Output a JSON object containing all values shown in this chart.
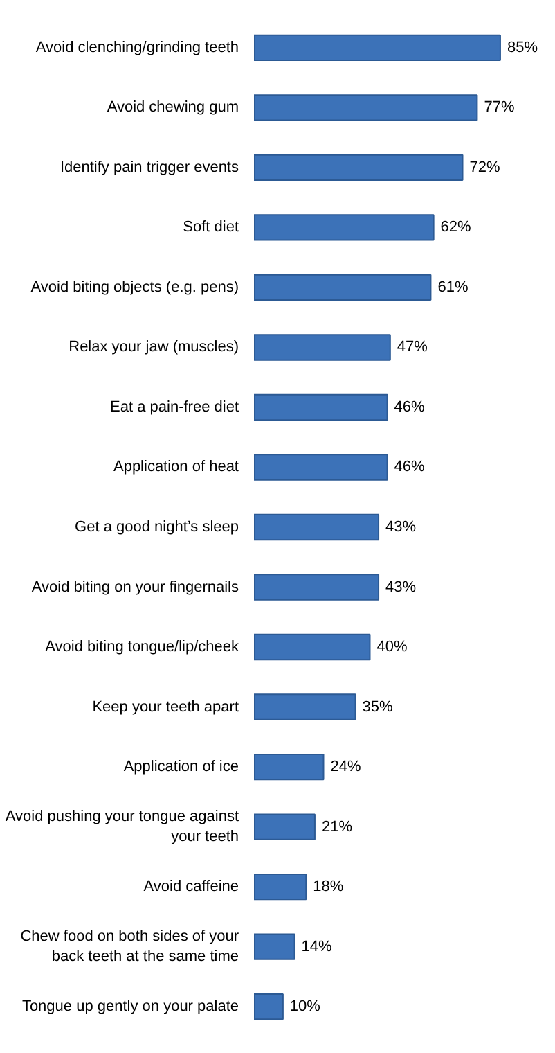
{
  "chart_data": {
    "type": "bar",
    "orientation": "horizontal",
    "categories": [
      "Avoid clenching/grinding teeth",
      "Avoid chewing gum",
      "Identify pain trigger events",
      "Soft diet",
      "Avoid biting objects (e.g. pens)",
      "Relax your jaw (muscles)",
      "Eat a pain-free diet",
      "Application of heat",
      "Get a good night’s sleep",
      "Avoid biting on your fingernails",
      "Avoid biting tongue/lip/cheek",
      "Keep your teeth apart",
      "Application of ice",
      "Avoid pushing your tongue against your teeth",
      "Avoid caffeine",
      "Chew food on both sides of your back teeth at the same time",
      "Tongue up gently on your palate"
    ],
    "values": [
      85,
      77,
      72,
      62,
      61,
      47,
      46,
      46,
      43,
      43,
      40,
      35,
      24,
      21,
      18,
      14,
      10
    ],
    "value_labels": [
      "85%",
      "77%",
      "72%",
      "62%",
      "61%",
      "47%",
      "46%",
      "46%",
      "43%",
      "43%",
      "40%",
      "35%",
      "24%",
      "21%",
      "18%",
      "14%",
      "10%"
    ],
    "color": "#3c72b8",
    "tick_labels": "y"
  }
}
